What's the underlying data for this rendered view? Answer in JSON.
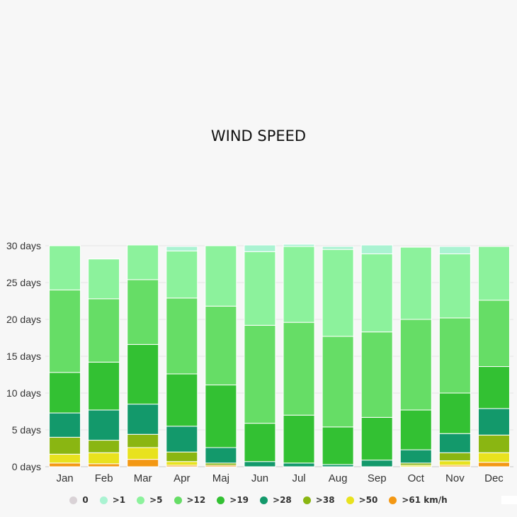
{
  "chart_data": {
    "type": "bar",
    "stacked": true,
    "title": "WIND SPEED",
    "categories": [
      "Jan",
      "Feb",
      "Mar",
      "Apr",
      "Maj",
      "Jun",
      "Jul",
      "Aug",
      "Sep",
      "Oct",
      "Nov",
      "Dec"
    ],
    "ylim": [
      0,
      30
    ],
    "yticks": [
      "0 days",
      "5 days",
      "10 days",
      "15 days",
      "20 days",
      "25 days",
      "30 days"
    ],
    "grid": true,
    "legend_position": "bottom",
    "series": [
      {
        "name": "0",
        "color": "#d9d2d6",
        "values": [
          0,
          0,
          0,
          0,
          0,
          0,
          0,
          0,
          0,
          0,
          0,
          0
        ]
      },
      {
        "name": ">1",
        "color": "#aaf3d2",
        "values": [
          0,
          0,
          0,
          0.6,
          0,
          0.9,
          0.3,
          0.4,
          1.2,
          0,
          1.0,
          0
        ]
      },
      {
        "name": ">5",
        "color": "#8cf29c",
        "values": [
          6.0,
          5.4,
          4.7,
          6.4,
          8.2,
          10.0,
          10.3,
          11.8,
          10.6,
          9.8,
          8.7,
          7.3
        ]
      },
      {
        "name": ">12",
        "color": "#66dd66",
        "values": [
          11.2,
          8.6,
          8.8,
          10.3,
          10.7,
          13.3,
          12.6,
          12.3,
          11.6,
          12.3,
          10.2,
          9.0
        ]
      },
      {
        "name": ">19",
        "color": "#33c133",
        "values": [
          5.5,
          6.5,
          8.1,
          7.1,
          8.5,
          5.2,
          6.5,
          5.1,
          5.8,
          5.4,
          5.5,
          5.7
        ]
      },
      {
        "name": ">28",
        "color": "#13996b",
        "values": [
          3.3,
          4.1,
          4.1,
          3.5,
          2.1,
          0.7,
          0.5,
          0.3,
          0.9,
          1.8,
          2.6,
          3.6
        ]
      },
      {
        "name": ">38",
        "color": "#8ab612",
        "values": [
          2.3,
          1.7,
          1.8,
          1.3,
          0.3,
          0,
          0,
          0,
          0,
          0.3,
          1.1,
          2.4
        ]
      },
      {
        "name": ">50",
        "color": "#e8e21e",
        "values": [
          1.2,
          1.5,
          1.6,
          0.5,
          0,
          0,
          0,
          0,
          0,
          0.2,
          0.6,
          1.3
        ]
      },
      {
        "name": ">61 km/h",
        "color": "#f39814",
        "values": [
          0.5,
          0.4,
          1.0,
          0.2,
          0.2,
          0,
          0,
          0,
          0,
          0,
          0.2,
          0.6
        ]
      }
    ]
  }
}
